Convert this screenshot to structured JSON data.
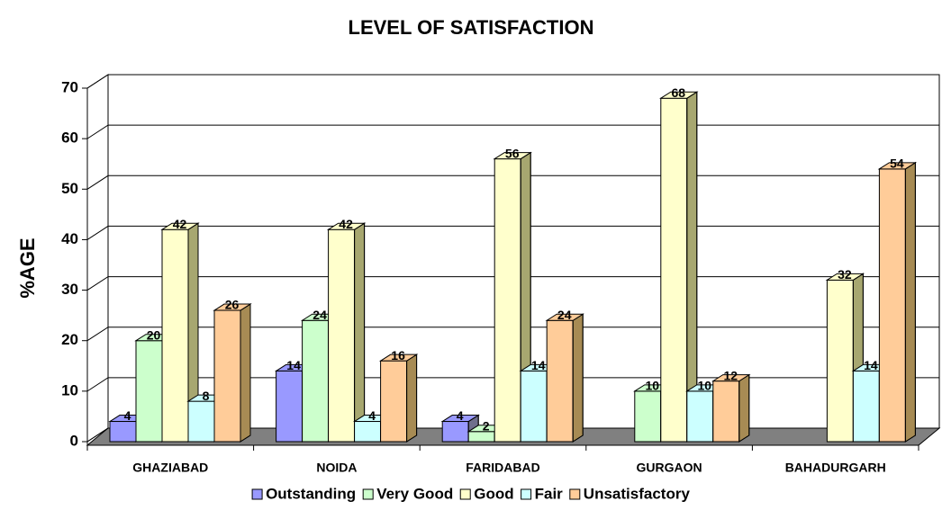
{
  "chart_data": {
    "type": "bar3d",
    "title": "LEVEL OF SATISFACTION",
    "y_label": "%AGE",
    "categories": [
      "GHAZIABAD",
      "NOIDA",
      "FARIDABAD",
      "GURGAON",
      "BAHADURGARH"
    ],
    "series": [
      {
        "name": "Outstanding",
        "color": "#9999ff",
        "values": [
          4,
          14,
          4,
          null,
          null
        ]
      },
      {
        "name": "Very Good",
        "color": "#ccffcc",
        "values": [
          20,
          24,
          2,
          10,
          null
        ]
      },
      {
        "name": "Good",
        "color": "#ffffcc",
        "values": [
          42,
          42,
          56,
          68,
          32
        ]
      },
      {
        "name": "Fair",
        "color": "#ccffff",
        "values": [
          8,
          4,
          14,
          10,
          14
        ]
      },
      {
        "name": "Unsatisfactory",
        "color": "#ffcc99",
        "values": [
          26,
          16,
          24,
          12,
          54
        ]
      }
    ],
    "ylim": [
      0,
      70
    ],
    "yticks": [
      0,
      10,
      20,
      30,
      40,
      50,
      60,
      70
    ],
    "grid": true,
    "legend": "bottom"
  }
}
